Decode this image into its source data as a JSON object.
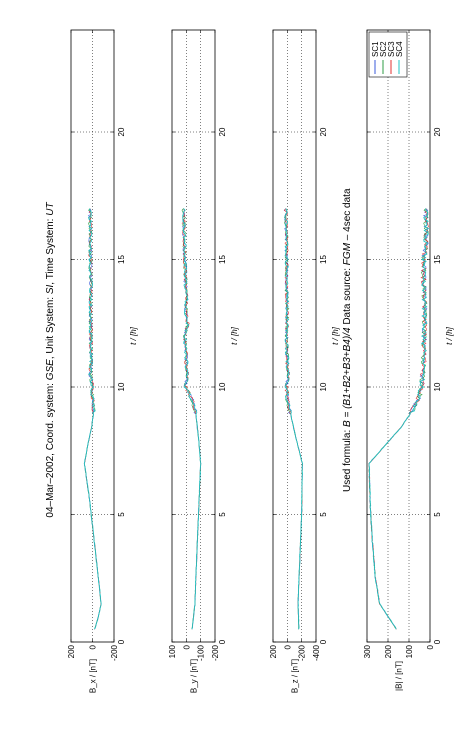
{
  "title": {
    "date": "04–Mar–2002",
    "coord_prefix": ", Coord. system: ",
    "coord": "GSE",
    "unit_prefix": ", Unit System: ",
    "unit": "SI",
    "time_prefix": ", Time System: ",
    "time": "UT"
  },
  "formula": {
    "prefix": "Used formula:  ",
    "text": "B = (B1+B2+B3+B4)/4",
    "source_prefix": "   Data source:  ",
    "source": "FGM",
    "source_suffix": " – 4sec data"
  },
  "colors": {
    "SC1": "#3b5bdb",
    "SC2": "#2f9e44",
    "SC3": "#e03131",
    "SC4": "#22c3c3"
  },
  "chart_data": [
    {
      "type": "line",
      "xlabel": "t / [h]",
      "ylabel": "B_x / [nT]",
      "xlim": [
        0,
        24
      ],
      "ylim": [
        -200,
        200
      ],
      "xticks": [
        0,
        5,
        10,
        15,
        20
      ],
      "yticks": [
        -200,
        0,
        200
      ],
      "grid": true,
      "x": [
        0.5,
        1.0,
        1.5,
        2.5,
        4.0,
        5.5,
        7.0,
        7.7,
        8.4,
        9.0,
        9.4,
        9.7,
        10.0,
        10.5,
        11.0,
        12.0,
        13.0,
        14.0,
        15.0,
        16.0,
        17.0
      ],
      "series": [
        {
          "values": [
            -20,
            -55,
            -80,
            -55,
            -15,
            25,
            75,
            45,
            10,
            -10,
            -5,
            5,
            0,
            20,
            15,
            15,
            20,
            15,
            20,
            20,
            25
          ]
        }
      ]
    },
    {
      "type": "line",
      "xlabel": "t / [h]",
      "ylabel": "B_y / [nT]",
      "xlim": [
        0,
        24
      ],
      "ylim": [
        -200,
        100
      ],
      "xticks": [
        0,
        5,
        10,
        15,
        20
      ],
      "yticks": [
        -200,
        -100,
        0,
        100
      ],
      "grid": true,
      "x": [
        0.5,
        1.5,
        3.0,
        5.0,
        7.0,
        8.0,
        9.0,
        9.5,
        10.0,
        10.5,
        11.5,
        12.0,
        12.5,
        13.0,
        13.5,
        14.0,
        15.0,
        16.0,
        17.0
      ],
      "series": [
        {
          "values": [
            -40,
            -60,
            -70,
            -85,
            -100,
            -85,
            -65,
            -40,
            5,
            -5,
            5,
            10,
            -10,
            5,
            -5,
            5,
            10,
            15,
            20
          ]
        }
      ]
    },
    {
      "type": "line",
      "xlabel": "t / [h]",
      "ylabel": "B_z / [nT]",
      "xlim": [
        0,
        24
      ],
      "ylim": [
        -400,
        200
      ],
      "xticks": [
        0,
        5,
        10,
        15,
        20
      ],
      "yticks": [
        -400,
        -200,
        0,
        200
      ],
      "grid": true,
      "x": [
        0.5,
        1.5,
        3.0,
        5.0,
        7.0,
        8.0,
        9.0,
        9.5,
        10.0,
        10.5,
        11.0,
        12.0,
        13.0,
        14.0,
        15.0,
        16.0,
        17.0
      ],
      "series": [
        {
          "values": [
            -160,
            -150,
            -170,
            -200,
            -210,
            -120,
            -40,
            0,
            10,
            -10,
            0,
            10,
            0,
            10,
            10,
            15,
            20
          ]
        }
      ]
    },
    {
      "type": "line",
      "xlabel": "t / [h]",
      "ylabel": "|B| / [nT]",
      "xlim": [
        0,
        24
      ],
      "ylim": [
        0,
        300
      ],
      "xticks": [
        0,
        5,
        10,
        15,
        20
      ],
      "yticks": [
        0,
        100,
        200,
        300
      ],
      "grid": true,
      "legend": "top-right",
      "legend_entries": [
        "SC1",
        "SC2",
        "SC3",
        "SC4"
      ],
      "x": [
        0.5,
        1.0,
        1.5,
        2.5,
        4.0,
        5.5,
        7.0,
        7.7,
        8.4,
        9.0,
        9.4,
        9.7,
        10.0,
        11.0,
        12.0,
        13.0,
        14.0,
        15.0,
        15.5,
        16.0,
        17.0
      ],
      "series": [
        {
          "values": [
            160,
            200,
            240,
            260,
            275,
            285,
            290,
            215,
            140,
            90,
            65,
            50,
            40,
            30,
            28,
            25,
            30,
            30,
            20,
            18,
            20
          ]
        }
      ]
    }
  ]
}
